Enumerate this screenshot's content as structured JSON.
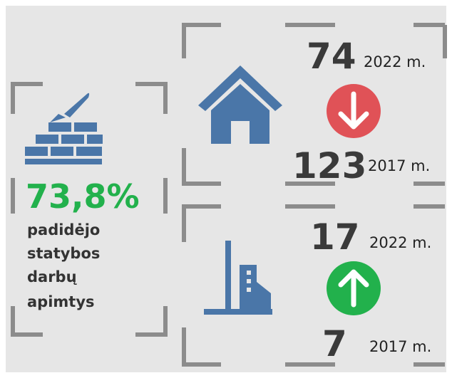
{
  "left": {
    "percent": "73,8%",
    "caption_lines": [
      "padidėjo",
      "statybos",
      "darbų",
      "apimtys"
    ]
  },
  "top": {
    "current": {
      "value": 74,
      "year": "2022 m."
    },
    "previous": {
      "value": 123,
      "year": "2017 m."
    }
  },
  "bottom": {
    "current": {
      "value": 17,
      "year": "2022 m."
    },
    "previous": {
      "value": 7,
      "year": "2017 m."
    }
  }
}
